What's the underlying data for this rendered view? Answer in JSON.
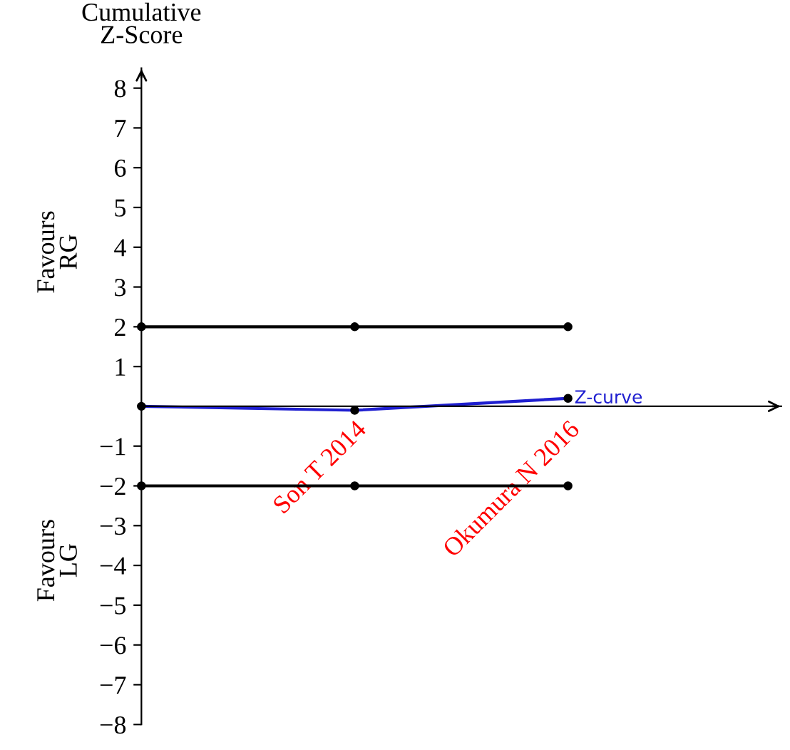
{
  "chart_data": {
    "type": "line",
    "ylabel": "Cumulative\nZ-Score",
    "categories": [
      null,
      "Son T 2014",
      "Okumura N 2016"
    ],
    "series": [
      {
        "name": "Z-curve",
        "color": "#1f1fd0",
        "values": [
          0,
          -0.1,
          0.2
        ]
      },
      {
        "color": "#000000",
        "values": [
          2,
          2,
          2
        ]
      },
      {
        "color": "#000000",
        "values": [
          -2,
          -2,
          -2
        ]
      }
    ],
    "marker": "circle",
    "line_style": "solid",
    "ylim": [
      -8,
      8.5
    ],
    "yticks": [
      -8,
      -7,
      -6,
      -5,
      -4,
      -3,
      -2,
      -1,
      1,
      2,
      3,
      4,
      5,
      6,
      7,
      8
    ],
    "annotations": [
      "Favours\nRG",
      "Favours\nLG"
    ],
    "grid": false,
    "legend": "right"
  }
}
